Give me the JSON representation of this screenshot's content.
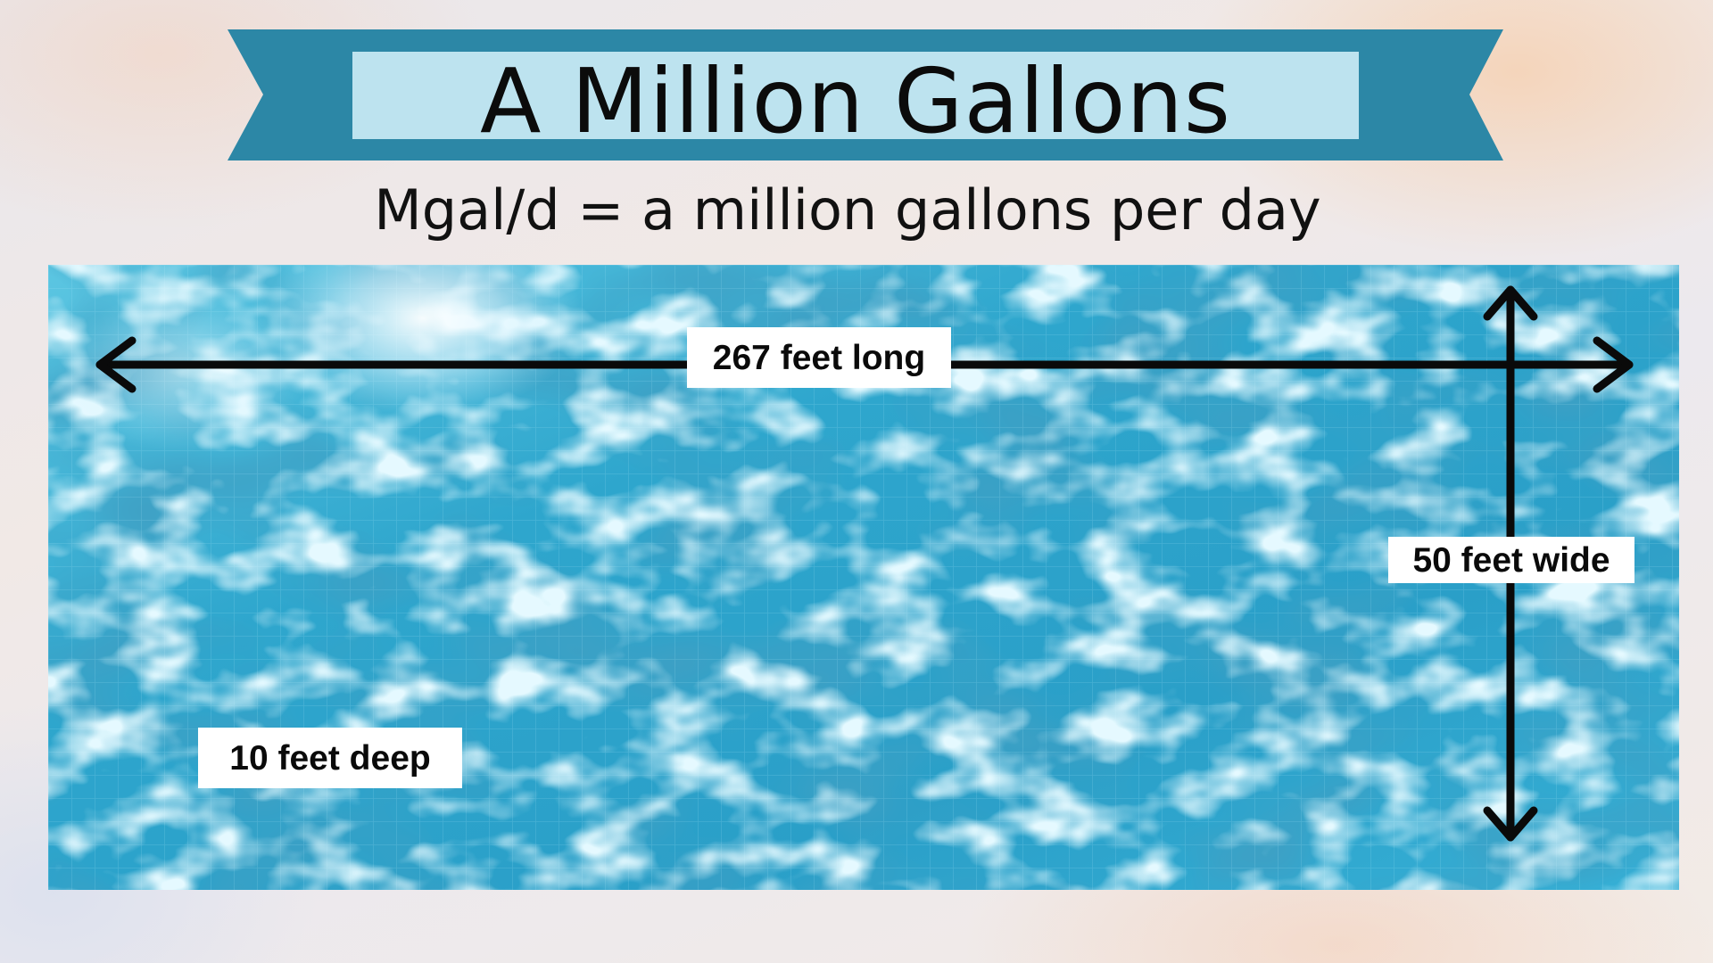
{
  "title": "A Million Gallons",
  "subtitle": "Mgal/d = a million gallons per day",
  "dimensions": {
    "length": "267 feet long",
    "width": "50 feet wide",
    "depth": "10 feet deep"
  },
  "colors": {
    "banner_ribbon": "#2c87a6",
    "title_box": "#bde3ef",
    "water": "#2fa9cf",
    "arrow": "#0a0a0a",
    "label_background": "#ffffff"
  },
  "icons": {
    "length_arrow": "double-headed-horizontal-arrow",
    "width_arrow": "double-headed-vertical-arrow"
  }
}
